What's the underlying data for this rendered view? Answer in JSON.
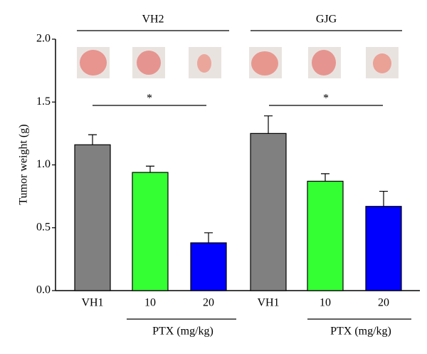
{
  "chart_data": {
    "type": "bar",
    "ylabel": "Tumor weight (g)",
    "categories": [
      "VH1",
      "10",
      "20",
      "VH1",
      "10",
      "20"
    ],
    "values": [
      1.16,
      0.94,
      0.38,
      1.25,
      0.87,
      0.67
    ],
    "errors": [
      0.08,
      0.05,
      0.08,
      0.14,
      0.06,
      0.12
    ],
    "colors": [
      "#808080",
      "#33ff33",
      "#0000ff",
      "#808080",
      "#33ff33",
      "#0000ff"
    ],
    "group_labels": [
      "VH2",
      "GJG"
    ],
    "dose_labels": [
      "PTX (mg/kg)",
      "PTX (mg/kg)"
    ],
    "significance_labels": [
      "*",
      "*"
    ],
    "ylim": [
      0,
      2
    ],
    "yticks": [
      {
        "value": 0,
        "label": "0.0"
      },
      0.5,
      {
        "value": 1,
        "label": "1.0"
      },
      1.5,
      {
        "value": 2,
        "label": "2.0"
      }
    ]
  }
}
